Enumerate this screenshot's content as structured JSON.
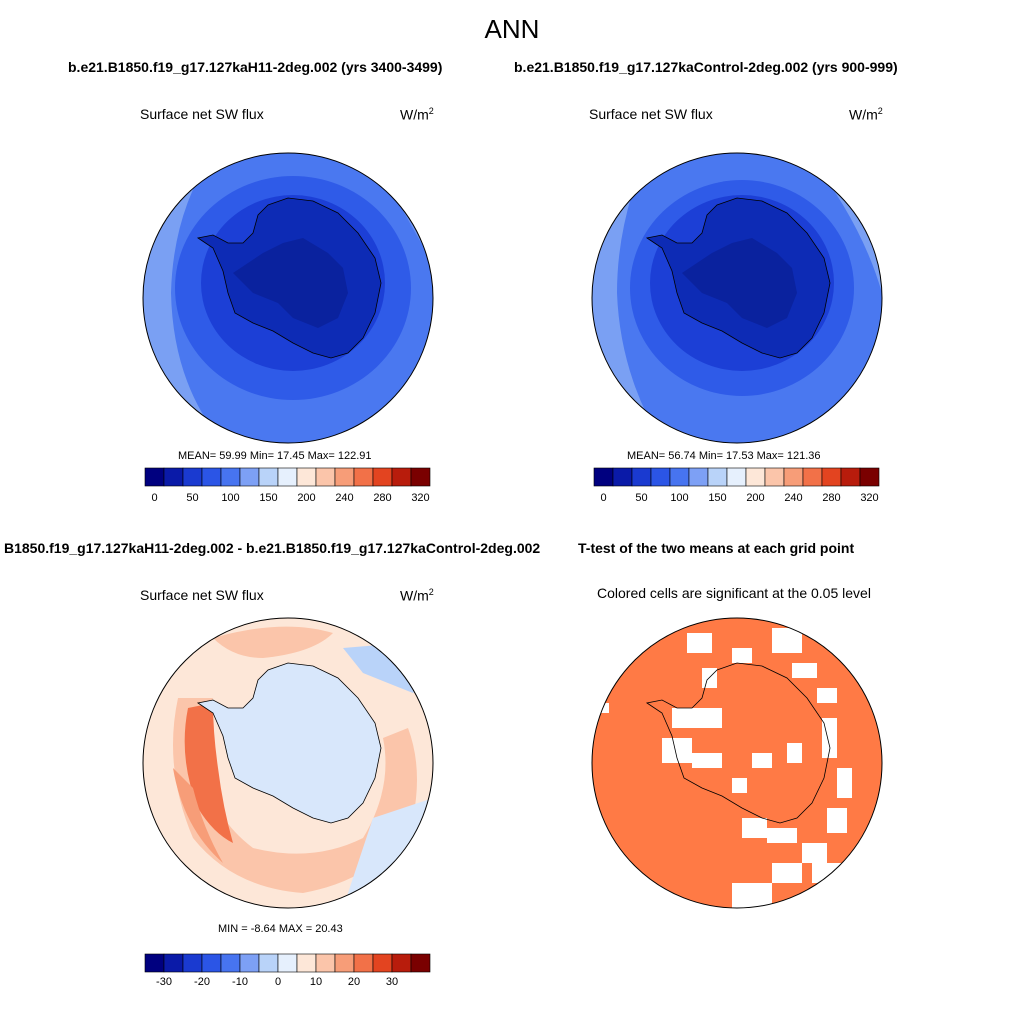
{
  "title": "ANN",
  "top_row": {
    "left_case": "b.e21.B1850.f19_g17.127kaH11-2deg.002 (yrs 3400-3499)",
    "right_case": "b.e21.B1850.f19_g17.127kaControl-2deg.002 (yrs 900-999)"
  },
  "panels": [
    {
      "variable": "Surface net SW flux",
      "units": "W/m",
      "units_sup": "2",
      "stats": "MEAN=  59.99  Min=  17.45  Max= 122.91"
    },
    {
      "variable": "Surface net SW flux",
      "units": "W/m",
      "units_sup": "2",
      "stats": "MEAN=  56.74  Min=  17.53  Max= 121.36"
    },
    {
      "variable": "Surface net SW flux",
      "units": "W/m",
      "units_sup": "2",
      "stats": "MIN =  -8.64 MAX =  20.43"
    },
    {
      "variable": "Colored cells are significant at the 0.05 level"
    }
  ],
  "diff_title": "B1850.f19_g17.127kaH11-2deg.002 - b.e21.B1850.f19_g17.127kaControl-2deg.002",
  "ttest_title": "T-test of the two means at each grid point",
  "colorbar_abs": {
    "colors": [
      "#00007f",
      "#0a1aa8",
      "#1a3ad0",
      "#2b55e6",
      "#4774f0",
      "#7da0f5",
      "#b9d3f9",
      "#e6f0fd",
      "#fde7d8",
      "#fbc5aa",
      "#f79d78",
      "#f27148",
      "#e34420",
      "#b81c0c",
      "#7a0000"
    ],
    "tick_labels": [
      "0",
      "50",
      "100",
      "150",
      "200",
      "240",
      "280",
      "320"
    ]
  },
  "colorbar_diff": {
    "colors": [
      "#00007f",
      "#0a1aa8",
      "#1a3ad0",
      "#2b55e6",
      "#4774f0",
      "#7da0f5",
      "#b9d3f9",
      "#e6f0fd",
      "#fde7d8",
      "#fbc5aa",
      "#f79d78",
      "#f27148",
      "#e34420",
      "#b81c0c",
      "#7a0000"
    ],
    "tick_labels": [
      "-30",
      "-20",
      "-10",
      "0",
      "10",
      "20",
      "30"
    ]
  },
  "map_colors": {
    "ocean_far": "#4a78f0",
    "ocean_mid": "#2f5be8",
    "ocean_near": "#1c3fd6",
    "ice": "#0d2bb5",
    "ice_deep": "#0a229e",
    "edge_light": "#7aa0f3",
    "diff_base": "#fde7d8",
    "diff_warm": "#fbc5aa",
    "diff_hot": "#f27148",
    "diff_cool": "#d8e7fb",
    "diff_blue": "#b9d3f9",
    "ttest": "#ff7a45",
    "coast": "#000000"
  }
}
